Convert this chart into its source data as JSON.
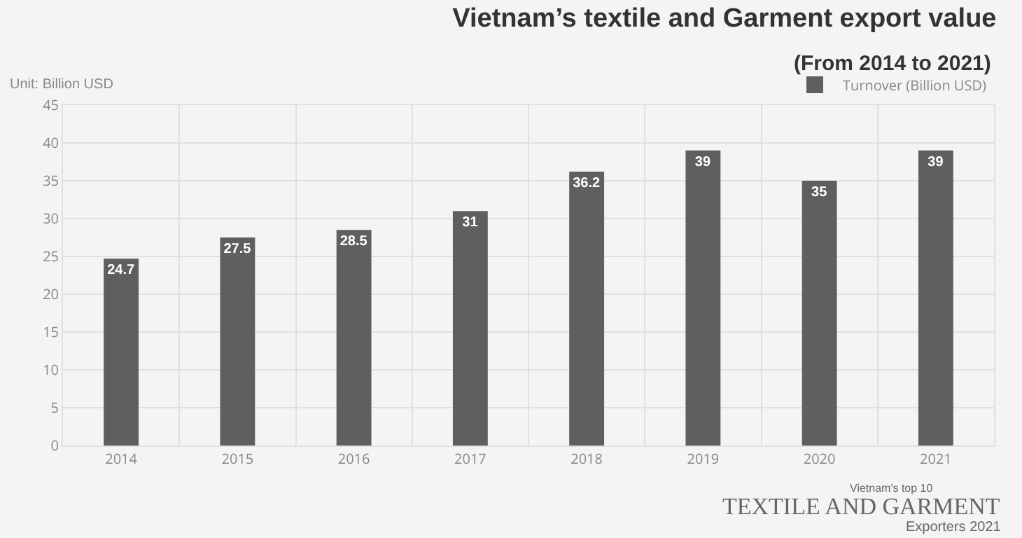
{
  "chart_data": {
    "type": "bar",
    "title": "Vietnam’s textile and Garment export value",
    "subtitle": "(From 2014 to 2021)",
    "ylabel": "Unit: Billion USD",
    "categories": [
      "2014",
      "2015",
      "2016",
      "2017",
      "2018",
      "2019",
      "2020",
      "2021"
    ],
    "series": [
      {
        "name": "Turnover (Billion USD)",
        "color": "#5f5f5f",
        "values": [
          24.7,
          27.5,
          28.5,
          31,
          36.2,
          39,
          35,
          39
        ]
      }
    ],
    "ylim": [
      0,
      45
    ],
    "yticks": [
      0,
      5,
      10,
      15,
      20,
      25,
      30,
      35,
      40,
      45
    ],
    "grid": true,
    "legend": "top right",
    "data_labels": true,
    "annotations": [
      "Vietnam's top 10",
      "TEXTILE AND GARMENT",
      "Exporters 2021"
    ]
  }
}
